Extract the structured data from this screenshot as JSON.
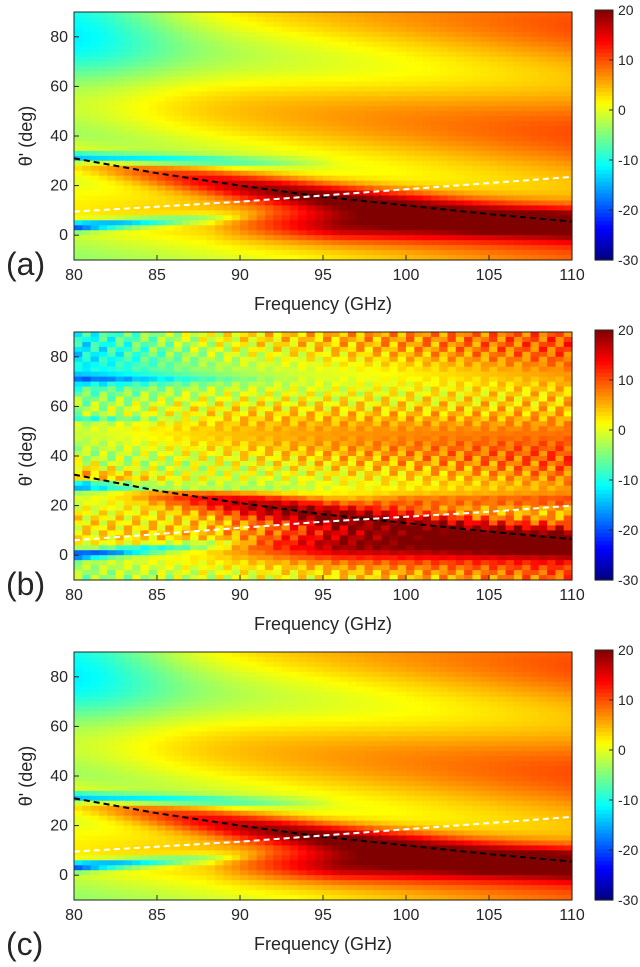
{
  "chart_data": [
    {
      "type": "heatmap",
      "panel_label": "(a)",
      "xlabel": "Frequency (GHz)",
      "ylabel": "θ' (deg)",
      "xlim": [
        80,
        110
      ],
      "ylim": [
        -10,
        90
      ],
      "xticks": [
        80,
        85,
        90,
        95,
        100,
        105,
        110
      ],
      "yticks": [
        0,
        20,
        40,
        60,
        80
      ],
      "colorbar": {
        "range": [
          -30,
          20
        ],
        "ticks": [
          20,
          10,
          0,
          -10,
          -20,
          -30
        ]
      },
      "colormap": "jet",
      "variant": "smooth",
      "band_strength": 0.0,
      "series": [
        {
          "color": "#000000",
          "dash": "dashed",
          "x": [
            80,
            85,
            90,
            95,
            100,
            105,
            110
          ],
          "y": [
            31,
            25,
            20,
            15.5,
            12,
            8.5,
            5.5
          ]
        },
        {
          "color": "#ffffff",
          "dash": "dashed",
          "x": [
            80,
            85,
            90,
            95,
            100,
            105,
            110
          ],
          "y": [
            9.5,
            11.5,
            13.5,
            16,
            18.5,
            21,
            23.5
          ]
        }
      ]
    },
    {
      "type": "heatmap",
      "panel_label": "(b)",
      "xlabel": "Frequency (GHz)",
      "ylabel": "θ' (deg)",
      "xlim": [
        80,
        110
      ],
      "ylim": [
        -10,
        90
      ],
      "xticks": [
        80,
        85,
        90,
        95,
        100,
        105,
        110
      ],
      "yticks": [
        0,
        20,
        40,
        60,
        80
      ],
      "colorbar": {
        "range": [
          -30,
          20
        ],
        "ticks": [
          20,
          10,
          0,
          -10,
          -20,
          -30
        ]
      },
      "colormap": "jet",
      "variant": "noisy",
      "band_strength": 1.0,
      "series": [
        {
          "color": "#000000",
          "dash": "dashed",
          "x": [
            80,
            85,
            90,
            95,
            100,
            105,
            110
          ],
          "y": [
            32.5,
            26,
            21,
            16.5,
            13,
            9.5,
            6.5
          ]
        },
        {
          "color": "#ffffff",
          "dash": "dashed",
          "x": [
            80,
            85,
            90,
            95,
            100,
            105,
            110
          ],
          "y": [
            6,
            8.5,
            11,
            13.5,
            15.5,
            17.5,
            20
          ]
        }
      ]
    },
    {
      "type": "heatmap",
      "panel_label": "(c)",
      "xlabel": "Frequency (GHz)",
      "ylabel": "θ' (deg)",
      "xlim": [
        80,
        110
      ],
      "ylim": [
        -10,
        90
      ],
      "xticks": [
        80,
        85,
        90,
        95,
        100,
        105,
        110
      ],
      "yticks": [
        0,
        20,
        40,
        60,
        80
      ],
      "colorbar": {
        "range": [
          -30,
          20
        ],
        "ticks": [
          20,
          10,
          0,
          -10,
          -20,
          -30
        ]
      },
      "colormap": "jet",
      "variant": "smooth",
      "band_strength": 0.0,
      "series": [
        {
          "color": "#000000",
          "dash": "dashed",
          "x": [
            80,
            85,
            90,
            95,
            100,
            105,
            110
          ],
          "y": [
            31,
            25,
            20,
            15.5,
            12,
            8.5,
            5.5
          ]
        },
        {
          "color": "#ffffff",
          "dash": "dashed",
          "x": [
            80,
            85,
            90,
            95,
            100,
            105,
            110
          ],
          "y": [
            9.5,
            11.5,
            13.5,
            16,
            18.5,
            21,
            23.5
          ]
        }
      ]
    }
  ]
}
